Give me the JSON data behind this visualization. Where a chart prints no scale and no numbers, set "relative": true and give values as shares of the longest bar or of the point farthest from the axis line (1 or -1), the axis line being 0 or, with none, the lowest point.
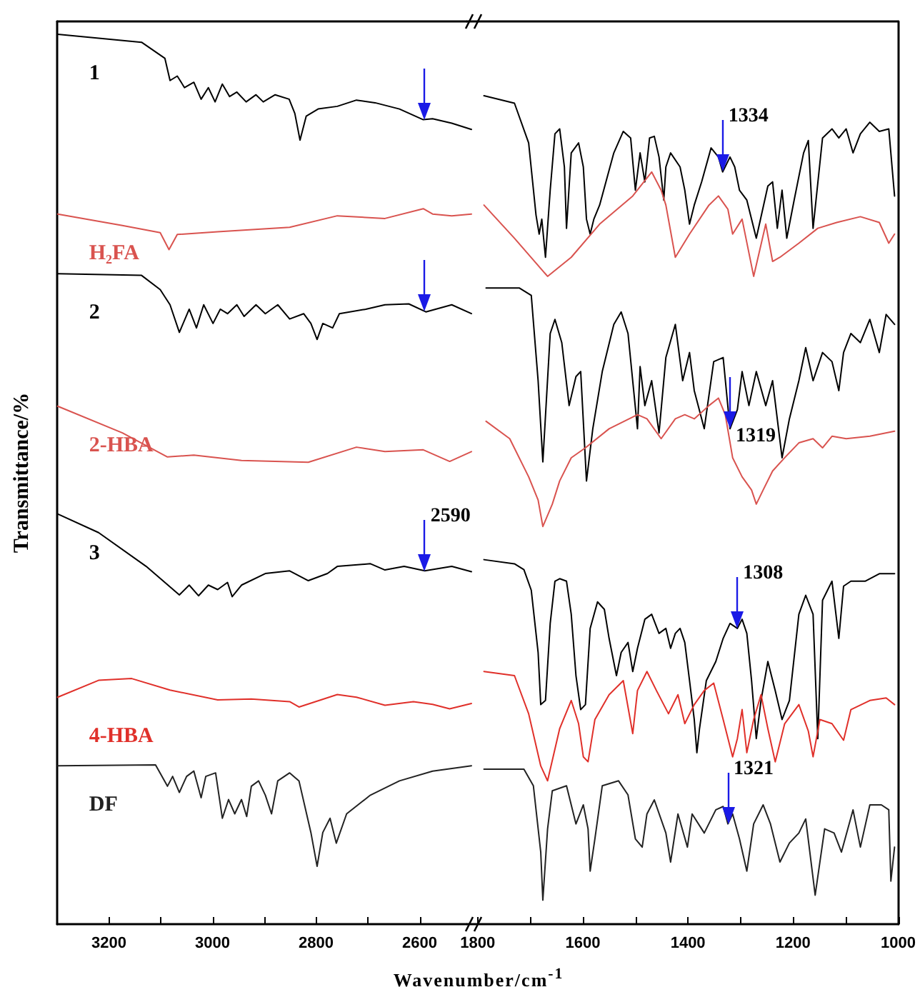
{
  "chart_data": [
    {
      "type": "line",
      "ylabel": "Transmittance/%",
      "xlabel": "Wavenumber/cm$^{-1}$",
      "relative": true,
      "xlim": [
        3300,
        2500
      ],
      "xticks": [
        3200,
        {
          "value": 3100,
          "label": null
        },
        3000,
        {
          "value": 2900,
          "label": null
        },
        2800,
        {
          "value": 2700,
          "label": null
        },
        2600
      ],
      "annotations": [
        {
          "text": "2590",
          "x": 2590,
          "y": 0.397
        }
      ],
      "series": [
        {
          "name": "1",
          "color": "#000000",
          "x": [
            3299,
            3137,
            3092,
            3082,
            3068,
            3054,
            3036,
            3022,
            3008,
            2995,
            2981,
            2967,
            2953,
            2935,
            2916,
            2902,
            2879,
            2852,
            2841,
            2831,
            2819,
            2796,
            2759,
            2722,
            2686,
            2639,
            2593,
            2575,
            2538,
            2500
          ],
          "values": [
            1.0,
            0.991,
            0.973,
            0.948,
            0.953,
            0.94,
            0.946,
            0.927,
            0.94,
            0.924,
            0.944,
            0.93,
            0.935,
            0.924,
            0.932,
            0.924,
            0.932,
            0.927,
            0.911,
            0.881,
            0.908,
            0.916,
            0.919,
            0.926,
            0.923,
            0.916,
            0.904,
            0.905,
            0.9,
            0.893
          ]
        },
        {
          "name": "H₂FA",
          "color": "#d9534f",
          "x": [
            3299,
            3174,
            3101,
            3084,
            3068,
            2990,
            2851,
            2759,
            2667,
            2593,
            2575,
            2538,
            2500
          ],
          "values": [
            0.798,
            0.785,
            0.777,
            0.758,
            0.775,
            0.778,
            0.783,
            0.796,
            0.793,
            0.804,
            0.798,
            0.796,
            0.798
          ]
        },
        {
          "name": "2",
          "color": "#000000",
          "x": [
            3299,
            3137,
            3101,
            3082,
            3064,
            3045,
            3031,
            3017,
            2999,
            2985,
            2971,
            2953,
            2939,
            2916,
            2898,
            2874,
            2851,
            2824,
            2810,
            2798,
            2787,
            2768,
            2755,
            2704,
            2667,
            2621,
            2588,
            2538,
            2500
          ],
          "values": [
            0.731,
            0.729,
            0.713,
            0.696,
            0.665,
            0.691,
            0.67,
            0.696,
            0.675,
            0.691,
            0.686,
            0.696,
            0.683,
            0.696,
            0.686,
            0.696,
            0.68,
            0.686,
            0.675,
            0.657,
            0.675,
            0.67,
            0.686,
            0.691,
            0.696,
            0.697,
            0.688,
            0.696,
            0.686
          ]
        },
        {
          "name": "2-HBA",
          "color": "#d9534f",
          "x": [
            3299,
            3174,
            3087,
            3036,
            2944,
            2815,
            2722,
            2667,
            2593,
            2542,
            2500
          ],
          "values": [
            0.582,
            0.552,
            0.525,
            0.527,
            0.521,
            0.519,
            0.536,
            0.531,
            0.533,
            0.52,
            0.531
          ]
        },
        {
          "name": "3",
          "color": "#000000",
          "x": [
            3299,
            3220,
            3128,
            3064,
            3045,
            3027,
            3008,
            2990,
            2971,
            2962,
            2944,
            2898,
            2851,
            2815,
            2778,
            2759,
            2695,
            2667,
            2630,
            2590,
            2538,
            2500
          ],
          "values": [
            0.461,
            0.44,
            0.402,
            0.37,
            0.381,
            0.369,
            0.381,
            0.376,
            0.384,
            0.368,
            0.381,
            0.394,
            0.397,
            0.386,
            0.394,
            0.402,
            0.405,
            0.398,
            0.402,
            0.397,
            0.402,
            0.396
          ]
        },
        {
          "name": "4-HBA",
          "color": "#e0302a",
          "x": [
            3299,
            3220,
            3156,
            3082,
            2990,
            2925,
            2851,
            2833,
            2759,
            2722,
            2667,
            2612,
            2575,
            2542,
            2500
          ],
          "values": [
            0.255,
            0.274,
            0.276,
            0.263,
            0.252,
            0.253,
            0.25,
            0.244,
            0.258,
            0.255,
            0.246,
            0.25,
            0.247,
            0.242,
            0.248
          ]
        },
        {
          "name": "DF",
          "color": "#222222",
          "x": [
            3299,
            3110,
            3087,
            3077,
            3064,
            3050,
            3036,
            3022,
            3013,
            2994,
            2981,
            2969,
            2957,
            2944,
            2934,
            2925,
            2911,
            2898,
            2886,
            2874,
            2851,
            2833,
            2810,
            2798,
            2787,
            2773,
            2761,
            2741,
            2695,
            2639,
            2575,
            2500
          ],
          "values": [
            0.178,
            0.179,
            0.155,
            0.166,
            0.148,
            0.166,
            0.172,
            0.142,
            0.166,
            0.17,
            0.119,
            0.14,
            0.124,
            0.14,
            0.121,
            0.155,
            0.161,
            0.145,
            0.124,
            0.161,
            0.17,
            0.161,
            0.103,
            0.065,
            0.103,
            0.119,
            0.091,
            0.124,
            0.145,
            0.161,
            0.172,
            0.178
          ]
        }
      ]
    },
    {
      "type": "line",
      "relative": true,
      "xlim": [
        1820,
        1000
      ],
      "xticks": [
        1800,
        {
          "value": 1700,
          "label": null
        },
        1600,
        {
          "value": 1500,
          "label": null
        },
        1400,
        {
          "value": 1300,
          "label": null
        },
        1200,
        {
          "value": 1100,
          "label": null
        },
        1000
      ],
      "annotations": [
        {
          "text": "1334",
          "x": 1334,
          "y": 0.908
        },
        {
          "text": "1319",
          "x": 1320,
          "y": 0.598
        },
        {
          "text": "1308",
          "x": 1306,
          "y": 0.357
        },
        {
          "text": "1321",
          "x": 1324,
          "y": 0.121
        }
      ],
      "series": [
        {
          "color": "#000000",
          "x": [
            1788,
            1730,
            1703,
            1689,
            1683,
            1678,
            1671,
            1662,
            1653,
            1644,
            1635,
            1631,
            1622,
            1608,
            1599,
            1593,
            1586,
            1579,
            1568,
            1541,
            1523,
            1509,
            1500,
            1491,
            1482,
            1473,
            1464,
            1455,
            1446,
            1442,
            1433,
            1415,
            1406,
            1397,
            1388,
            1374,
            1356,
            1342,
            1334,
            1320,
            1311,
            1302,
            1288,
            1270,
            1248,
            1239,
            1230,
            1221,
            1212,
            1198,
            1180,
            1171,
            1162,
            1144,
            1126,
            1113,
            1099,
            1086,
            1072,
            1054,
            1036,
            1018,
            1007
          ],
          "values": [
            1.0,
            0.991,
            0.943,
            0.856,
            0.833,
            0.851,
            0.805,
            0.886,
            0.954,
            0.96,
            0.914,
            0.84,
            0.931,
            0.943,
            0.914,
            0.851,
            0.833,
            0.851,
            0.868,
            0.931,
            0.957,
            0.949,
            0.886,
            0.931,
            0.896,
            0.949,
            0.951,
            0.926,
            0.874,
            0.914,
            0.931,
            0.914,
            0.886,
            0.845,
            0.868,
            0.896,
            0.937,
            0.926,
            0.908,
            0.926,
            0.914,
            0.886,
            0.874,
            0.828,
            0.891,
            0.896,
            0.84,
            0.886,
            0.828,
            0.874,
            0.931,
            0.946,
            0.84,
            0.949,
            0.96,
            0.949,
            0.96,
            0.931,
            0.954,
            0.968,
            0.957,
            0.96,
            0.879
          ]
        },
        {
          "color": "#d9534f",
          "x": [
            1788,
            1730,
            1667,
            1622,
            1568,
            1505,
            1469,
            1451,
            1442,
            1424,
            1397,
            1360,
            1342,
            1324,
            1315,
            1297,
            1275,
            1252,
            1239,
            1225,
            1189,
            1153,
            1117,
            1072,
            1036,
            1018,
            1007
          ],
          "values": [
            0.868,
            0.828,
            0.782,
            0.805,
            0.845,
            0.879,
            0.908,
            0.886,
            0.868,
            0.805,
            0.833,
            0.868,
            0.879,
            0.863,
            0.833,
            0.851,
            0.782,
            0.845,
            0.8,
            0.805,
            0.822,
            0.84,
            0.847,
            0.854,
            0.847,
            0.822,
            0.833
          ]
        },
        {
          "color": "#000000",
          "x": [
            1784,
            1721,
            1698,
            1685,
            1676,
            1662,
            1653,
            1640,
            1626,
            1613,
            1604,
            1593,
            1581,
            1563,
            1541,
            1527,
            1514,
            1496,
            1491,
            1482,
            1469,
            1455,
            1442,
            1424,
            1410,
            1397,
            1388,
            1369,
            1351,
            1333,
            1320,
            1306,
            1297,
            1284,
            1270,
            1252,
            1239,
            1221,
            1207,
            1189,
            1176,
            1162,
            1144,
            1126,
            1113,
            1104,
            1090,
            1072,
            1054,
            1036,
            1023,
            1007
          ],
          "values": [
            0.768,
            0.768,
            0.759,
            0.656,
            0.558,
            0.713,
            0.73,
            0.702,
            0.626,
            0.661,
            0.667,
            0.535,
            0.598,
            0.667,
            0.724,
            0.739,
            0.713,
            0.598,
            0.673,
            0.626,
            0.656,
            0.593,
            0.684,
            0.724,
            0.656,
            0.69,
            0.644,
            0.598,
            0.679,
            0.684,
            0.598,
            0.621,
            0.667,
            0.626,
            0.667,
            0.626,
            0.656,
            0.563,
            0.61,
            0.656,
            0.696,
            0.656,
            0.69,
            0.679,
            0.644,
            0.69,
            0.713,
            0.702,
            0.73,
            0.69,
            0.736,
            0.724
          ]
        },
        {
          "color": "#d9534f",
          "x": [
            1784,
            1739,
            1703,
            1685,
            1676,
            1658,
            1644,
            1622,
            1595,
            1550,
            1496,
            1478,
            1451,
            1424,
            1406,
            1388,
            1360,
            1342,
            1329,
            1315,
            1297,
            1279,
            1270,
            1257,
            1239,
            1216,
            1189,
            1162,
            1144,
            1126,
            1099,
            1054,
            1007
          ],
          "values": [
            0.607,
            0.586,
            0.54,
            0.512,
            0.48,
            0.507,
            0.535,
            0.563,
            0.575,
            0.598,
            0.615,
            0.61,
            0.586,
            0.61,
            0.615,
            0.61,
            0.626,
            0.635,
            0.615,
            0.563,
            0.54,
            0.524,
            0.507,
            0.524,
            0.547,
            0.563,
            0.581,
            0.586,
            0.575,
            0.589,
            0.586,
            0.589,
            0.595
          ]
        },
        {
          "color": "#000000",
          "x": [
            1788,
            1730,
            1712,
            1698,
            1685,
            1680,
            1671,
            1662,
            1653,
            1644,
            1631,
            1622,
            1613,
            1604,
            1595,
            1586,
            1572,
            1559,
            1550,
            1536,
            1527,
            1514,
            1505,
            1496,
            1482,
            1469,
            1455,
            1442,
            1433,
            1424,
            1415,
            1406,
            1397,
            1388,
            1383,
            1378,
            1365,
            1347,
            1333,
            1320,
            1306,
            1297,
            1288,
            1279,
            1270,
            1261,
            1248,
            1234,
            1221,
            1207,
            1189,
            1176,
            1162,
            1153,
            1144,
            1126,
            1113,
            1104,
            1090,
            1063,
            1036,
            1007
          ],
          "values": [
            0.44,
            0.435,
            0.428,
            0.403,
            0.328,
            0.265,
            0.27,
            0.363,
            0.414,
            0.417,
            0.414,
            0.374,
            0.3,
            0.259,
            0.265,
            0.357,
            0.389,
            0.38,
            0.345,
            0.3,
            0.328,
            0.34,
            0.305,
            0.333,
            0.368,
            0.374,
            0.351,
            0.357,
            0.333,
            0.351,
            0.357,
            0.34,
            0.294,
            0.247,
            0.207,
            0.236,
            0.294,
            0.317,
            0.345,
            0.363,
            0.357,
            0.368,
            0.351,
            0.294,
            0.224,
            0.27,
            0.317,
            0.282,
            0.247,
            0.27,
            0.374,
            0.397,
            0.374,
            0.224,
            0.391,
            0.414,
            0.345,
            0.408,
            0.414,
            0.414,
            0.423,
            0.423
          ]
        },
        {
          "color": "#e0302a",
          "x": [
            1788,
            1730,
            1703,
            1680,
            1667,
            1644,
            1622,
            1608,
            1599,
            1590,
            1577,
            1550,
            1523,
            1505,
            1496,
            1478,
            1460,
            1437,
            1419,
            1406,
            1388,
            1369,
            1351,
            1333,
            1315,
            1306,
            1297,
            1288,
            1275,
            1261,
            1248,
            1234,
            1216,
            1189,
            1171,
            1162,
            1149,
            1126,
            1104,
            1090,
            1054,
            1023,
            1007
          ],
          "values": [
            0.305,
            0.3,
            0.254,
            0.191,
            0.173,
            0.236,
            0.27,
            0.242,
            0.202,
            0.196,
            0.247,
            0.277,
            0.294,
            0.23,
            0.282,
            0.305,
            0.282,
            0.254,
            0.277,
            0.242,
            0.265,
            0.282,
            0.291,
            0.247,
            0.202,
            0.224,
            0.259,
            0.207,
            0.247,
            0.277,
            0.236,
            0.196,
            0.242,
            0.265,
            0.233,
            0.202,
            0.247,
            0.242,
            0.222,
            0.259,
            0.27,
            0.273,
            0.265
          ]
        },
        {
          "color": "#222222",
          "x": [
            1788,
            1712,
            1694,
            1680,
            1676,
            1667,
            1658,
            1631,
            1613,
            1599,
            1590,
            1586,
            1577,
            1563,
            1532,
            1514,
            1500,
            1487,
            1478,
            1464,
            1442,
            1433,
            1419,
            1401,
            1392,
            1369,
            1347,
            1333,
            1324,
            1315,
            1302,
            1288,
            1275,
            1257,
            1243,
            1225,
            1207,
            1189,
            1176,
            1158,
            1140,
            1122,
            1108,
            1086,
            1072,
            1054,
            1032,
            1018,
            1014,
            1007
          ],
          "values": [
            0.187,
            0.187,
            0.167,
            0.087,
            0.029,
            0.115,
            0.161,
            0.167,
            0.121,
            0.144,
            0.115,
            0.064,
            0.103,
            0.167,
            0.173,
            0.156,
            0.103,
            0.093,
            0.133,
            0.15,
            0.11,
            0.075,
            0.133,
            0.093,
            0.133,
            0.11,
            0.138,
            0.142,
            0.121,
            0.133,
            0.103,
            0.064,
            0.121,
            0.144,
            0.121,
            0.075,
            0.098,
            0.11,
            0.127,
            0.035,
            0.115,
            0.11,
            0.087,
            0.138,
            0.093,
            0.144,
            0.144,
            0.138,
            0.052,
            0.093
          ]
        }
      ]
    }
  ]
}
